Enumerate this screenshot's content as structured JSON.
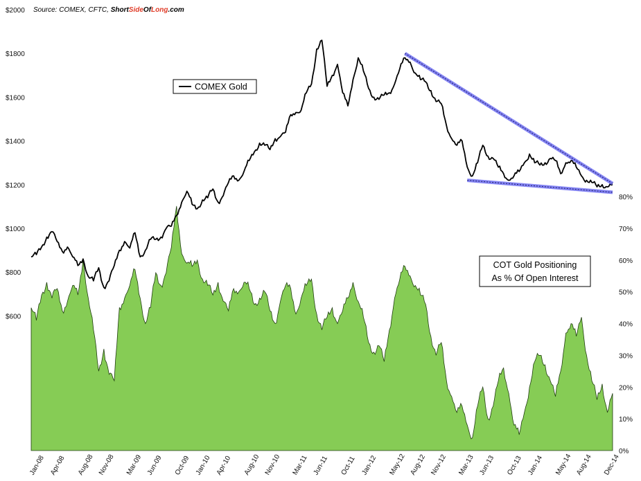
{
  "source": {
    "prefix": "Source: COMEX, CFTC, ",
    "brand_a": "Short",
    "brand_b": "Side",
    "brand_c": "Of",
    "brand_d": "Long",
    "brand_e": ".com",
    "brand_color": "#e03c28"
  },
  "chart_data": [
    {
      "type": "line",
      "series": [
        {
          "name": "COMEX Gold",
          "color": "#000000"
        }
      ],
      "legend_label": "COMEX Gold",
      "axis": "left",
      "ylim": [
        0,
        2000
      ],
      "yticks": [
        "$600",
        "$800",
        "$1000",
        "$1200",
        "$1400",
        "$1600",
        "$1800",
        "$2000"
      ],
      "ytick_values": [
        600,
        800,
        1000,
        1200,
        1400,
        1600,
        1800,
        2000
      ],
      "anchors": [
        [
          0,
          870
        ],
        [
          1,
          880
        ],
        [
          2,
          915
        ],
        [
          3,
          960
        ],
        [
          4,
          985
        ],
        [
          5,
          940
        ],
        [
          6,
          895
        ],
        [
          7,
          915
        ],
        [
          8,
          870
        ],
        [
          9,
          830
        ],
        [
          10,
          860
        ],
        [
          11,
          780
        ],
        [
          12,
          760
        ],
        [
          13,
          820
        ],
        [
          14,
          730
        ],
        [
          15,
          760
        ],
        [
          16,
          830
        ],
        [
          17,
          900
        ],
        [
          18,
          940
        ],
        [
          19,
          910
        ],
        [
          20,
          980
        ],
        [
          21,
          870
        ],
        [
          22,
          900
        ],
        [
          23,
          950
        ],
        [
          24,
          950
        ],
        [
          25,
          960
        ],
        [
          26,
          1000
        ],
        [
          27,
          1010
        ],
        [
          28,
          1060
        ],
        [
          29,
          1120
        ],
        [
          30,
          1170
        ],
        [
          31,
          1110
        ],
        [
          32,
          1090
        ],
        [
          33,
          1130
        ],
        [
          34,
          1140
        ],
        [
          35,
          1180
        ],
        [
          36,
          1120
        ],
        [
          37,
          1150
        ],
        [
          38,
          1210
        ],
        [
          39,
          1240
        ],
        [
          40,
          1220
        ],
        [
          41,
          1260
        ],
        [
          42,
          1310
        ],
        [
          43,
          1350
        ],
        [
          44,
          1390
        ],
        [
          45,
          1380
        ],
        [
          46,
          1360
        ],
        [
          47,
          1410
        ],
        [
          48,
          1420
        ],
        [
          49,
          1440
        ],
        [
          50,
          1520
        ],
        [
          51,
          1530
        ],
        [
          52,
          1540
        ],
        [
          53,
          1620
        ],
        [
          54,
          1660
        ],
        [
          55,
          1820
        ],
        [
          56,
          1860
        ],
        [
          57,
          1650
        ],
        [
          58,
          1700
        ],
        [
          59,
          1750
        ],
        [
          60,
          1620
        ],
        [
          61,
          1560
        ],
        [
          62,
          1680
        ],
        [
          63,
          1780
        ],
        [
          64,
          1720
        ],
        [
          65,
          1640
        ],
        [
          66,
          1600
        ],
        [
          67,
          1590
        ],
        [
          68,
          1610
        ],
        [
          69,
          1620
        ],
        [
          70,
          1660
        ],
        [
          71,
          1730
        ],
        [
          72,
          1780
        ],
        [
          73,
          1760
        ],
        [
          74,
          1710
        ],
        [
          75,
          1680
        ],
        [
          76,
          1670
        ],
        [
          77,
          1630
        ],
        [
          78,
          1580
        ],
        [
          79,
          1570
        ],
        [
          80,
          1470
        ],
        [
          81,
          1410
        ],
        [
          82,
          1380
        ],
        [
          83,
          1400
        ],
        [
          84,
          1280
        ],
        [
          85,
          1240
        ],
        [
          86,
          1300
        ],
        [
          87,
          1380
        ],
        [
          88,
          1330
        ],
        [
          89,
          1320
        ],
        [
          90,
          1280
        ],
        [
          91,
          1250
        ],
        [
          92,
          1220
        ],
        [
          93,
          1240
        ],
        [
          94,
          1260
        ],
        [
          95,
          1300
        ],
        [
          96,
          1340
        ],
        [
          97,
          1300
        ],
        [
          98,
          1290
        ],
        [
          99,
          1300
        ],
        [
          100,
          1320
        ],
        [
          101,
          1310
        ],
        [
          102,
          1250
        ],
        [
          103,
          1300
        ],
        [
          104,
          1310
        ],
        [
          105,
          1280
        ],
        [
          106,
          1240
        ],
        [
          107,
          1220
        ],
        [
          108,
          1210
        ],
        [
          109,
          1190
        ],
        [
          110,
          1200
        ],
        [
          111,
          1190
        ],
        [
          112,
          1200
        ]
      ],
      "trendlines": [
        {
          "from": [
            72,
            1800
          ],
          "to": [
            112,
            1205
          ]
        },
        {
          "from": [
            84,
            1220
          ],
          "to": [
            112,
            1165
          ]
        }
      ],
      "trendline_color": "#5b5bf0"
    },
    {
      "type": "area",
      "series": [
        {
          "name": "COT Gold Positioning As % Of Open Interest",
          "color": "#86cc55"
        }
      ],
      "legend_lines": [
        "COT Gold Positioning",
        "As % Of Open Interest"
      ],
      "axis": "right",
      "ylim": [
        0,
        100
      ],
      "yticks": [
        "0%",
        "10%",
        "20%",
        "30%",
        "40%",
        "50%",
        "60%",
        "70%",
        "80%"
      ],
      "ytick_values": [
        0,
        10,
        20,
        30,
        40,
        50,
        60,
        70,
        80
      ],
      "anchors": [
        [
          0,
          45
        ],
        [
          1,
          41
        ],
        [
          2,
          49
        ],
        [
          3,
          53
        ],
        [
          4,
          48
        ],
        [
          5,
          51
        ],
        [
          6,
          44
        ],
        [
          7,
          47
        ],
        [
          8,
          52
        ],
        [
          9,
          49
        ],
        [
          10,
          60
        ],
        [
          11,
          48
        ],
        [
          12,
          38
        ],
        [
          13,
          25
        ],
        [
          14,
          32
        ],
        [
          15,
          24
        ],
        [
          16,
          22
        ],
        [
          17,
          45
        ],
        [
          18,
          48
        ],
        [
          19,
          52
        ],
        [
          20,
          57
        ],
        [
          21,
          48
        ],
        [
          22,
          40
        ],
        [
          23,
          45
        ],
        [
          24,
          56
        ],
        [
          25,
          52
        ],
        [
          26,
          56
        ],
        [
          27,
          64
        ],
        [
          28,
          77
        ],
        [
          29,
          62
        ],
        [
          30,
          59
        ],
        [
          31,
          58
        ],
        [
          32,
          60
        ],
        [
          33,
          54
        ],
        [
          34,
          52
        ],
        [
          35,
          49
        ],
        [
          36,
          53
        ],
        [
          37,
          47
        ],
        [
          38,
          44
        ],
        [
          39,
          51
        ],
        [
          40,
          50
        ],
        [
          41,
          53
        ],
        [
          42,
          51
        ],
        [
          43,
          46
        ],
        [
          44,
          48
        ],
        [
          45,
          50
        ],
        [
          46,
          44
        ],
        [
          47,
          40
        ],
        [
          48,
          47
        ],
        [
          49,
          52
        ],
        [
          50,
          51
        ],
        [
          51,
          43
        ],
        [
          52,
          48
        ],
        [
          53,
          52
        ],
        [
          54,
          54
        ],
        [
          55,
          43
        ],
        [
          56,
          38
        ],
        [
          57,
          42
        ],
        [
          58,
          45
        ],
        [
          59,
          40
        ],
        [
          60,
          44
        ],
        [
          61,
          48
        ],
        [
          62,
          53
        ],
        [
          63,
          47
        ],
        [
          64,
          42
        ],
        [
          65,
          34
        ],
        [
          66,
          31
        ],
        [
          67,
          33
        ],
        [
          68,
          28
        ],
        [
          69,
          38
        ],
        [
          70,
          48
        ],
        [
          71,
          54
        ],
        [
          72,
          58
        ],
        [
          73,
          55
        ],
        [
          74,
          52
        ],
        [
          75,
          49
        ],
        [
          76,
          46
        ],
        [
          77,
          36
        ],
        [
          78,
          30
        ],
        [
          79,
          34
        ],
        [
          80,
          22
        ],
        [
          81,
          17
        ],
        [
          82,
          12
        ],
        [
          83,
          14
        ],
        [
          84,
          8
        ],
        [
          85,
          4
        ],
        [
          86,
          14
        ],
        [
          87,
          20
        ],
        [
          88,
          10
        ],
        [
          89,
          14
        ],
        [
          90,
          22
        ],
        [
          91,
          26
        ],
        [
          92,
          18
        ],
        [
          93,
          8
        ],
        [
          94,
          5
        ],
        [
          95,
          12
        ],
        [
          96,
          20
        ],
        [
          97,
          28
        ],
        [
          98,
          30
        ],
        [
          99,
          27
        ],
        [
          100,
          22
        ],
        [
          101,
          17
        ],
        [
          102,
          25
        ],
        [
          103,
          37
        ],
        [
          104,
          40
        ],
        [
          105,
          36
        ],
        [
          106,
          42
        ],
        [
          107,
          30
        ],
        [
          108,
          22
        ],
        [
          109,
          16
        ],
        [
          110,
          21
        ],
        [
          111,
          12
        ],
        [
          112,
          18
        ]
      ]
    }
  ],
  "x_axis": {
    "labels": [
      "Jan-08",
      "Apr-08",
      "Aug-08",
      "Nov-08",
      "Mar-09",
      "Jun-09",
      "Oct-09",
      "Jan-10",
      "Apr-10",
      "Aug-10",
      "Nov-10",
      "Mar-11",
      "Jun-11",
      "Oct-11",
      "Jan-12",
      "May-12",
      "Aug-12",
      "Nov-12",
      "Mar-13",
      "Jun-13",
      "Oct-13",
      "Jan-14",
      "May-14",
      "Aug-14",
      "Dec-14"
    ],
    "label_months": [
      0,
      3,
      7,
      10,
      14,
      17,
      21,
      24,
      27,
      31,
      34,
      38,
      41,
      45,
      48,
      52,
      55,
      58,
      62,
      65,
      69,
      72,
      76,
      79,
      83
    ],
    "total_months": 84
  }
}
